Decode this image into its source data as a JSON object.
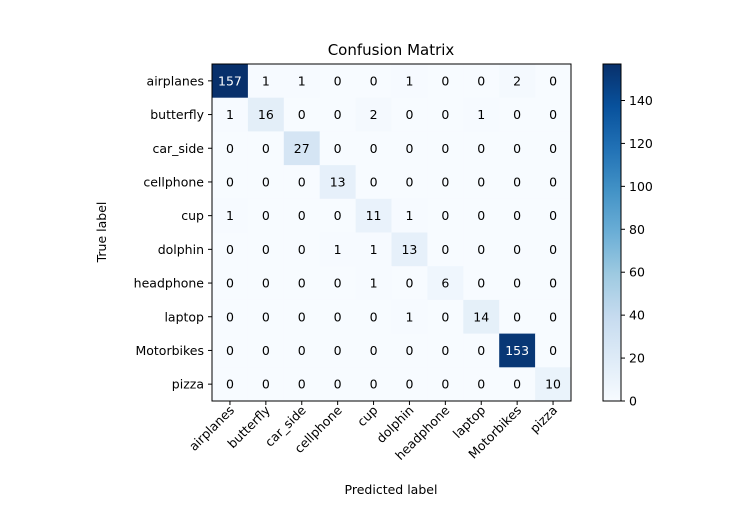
{
  "chart_data": {
    "type": "heatmap",
    "title": "Confusion Matrix",
    "xlabel": "Predicted label",
    "ylabel": "True label",
    "classes": [
      "airplanes",
      "butterfly",
      "car_side",
      "cellphone",
      "cup",
      "dolphin",
      "headphone",
      "laptop",
      "Motorbikes",
      "pizza"
    ],
    "matrix": [
      [
        157,
        1,
        1,
        0,
        0,
        1,
        0,
        0,
        2,
        0
      ],
      [
        1,
        16,
        0,
        0,
        2,
        0,
        0,
        1,
        0,
        0
      ],
      [
        0,
        0,
        27,
        0,
        0,
        0,
        0,
        0,
        0,
        0
      ],
      [
        0,
        0,
        0,
        13,
        0,
        0,
        0,
        0,
        0,
        0
      ],
      [
        1,
        0,
        0,
        0,
        11,
        1,
        0,
        0,
        0,
        0
      ],
      [
        0,
        0,
        0,
        1,
        1,
        13,
        0,
        0,
        0,
        0
      ],
      [
        0,
        0,
        0,
        0,
        1,
        0,
        6,
        0,
        0,
        0
      ],
      [
        0,
        0,
        0,
        0,
        0,
        1,
        0,
        14,
        0,
        0
      ],
      [
        0,
        0,
        0,
        0,
        0,
        0,
        0,
        0,
        153,
        0
      ],
      [
        0,
        0,
        0,
        0,
        0,
        0,
        0,
        0,
        0,
        10
      ]
    ],
    "colormap": "Blues",
    "value_range": [
      0,
      157
    ],
    "colorbar_ticks": [
      0,
      20,
      40,
      60,
      80,
      100,
      120,
      140
    ],
    "text_threshold": 78.5,
    "text_color_light": "#ffffff",
    "text_color_dark": "#000000"
  }
}
